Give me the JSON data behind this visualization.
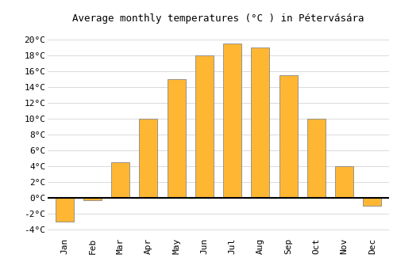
{
  "months": [
    "Jan",
    "Feb",
    "Mar",
    "Apr",
    "May",
    "Jun",
    "Jul",
    "Aug",
    "Sep",
    "Oct",
    "Nov",
    "Dec"
  ],
  "values": [
    -3.0,
    -0.3,
    4.5,
    10.0,
    15.0,
    18.0,
    19.5,
    19.0,
    15.5,
    10.0,
    4.0,
    -1.0
  ],
  "bar_color": "#FFB733",
  "bar_edge_color": "#888888",
  "title": "Average monthly temperatures (°C ) in Pétervására",
  "ytick_values": [
    -4,
    -2,
    0,
    2,
    4,
    6,
    8,
    10,
    12,
    14,
    16,
    18,
    20
  ],
  "ylim": [
    -4.8,
    21.5
  ],
  "background_color": "#ffffff",
  "grid_color": "#cccccc",
  "zero_line_color": "#000000",
  "title_fontsize": 9,
  "tick_fontsize": 8,
  "bar_width": 0.65
}
